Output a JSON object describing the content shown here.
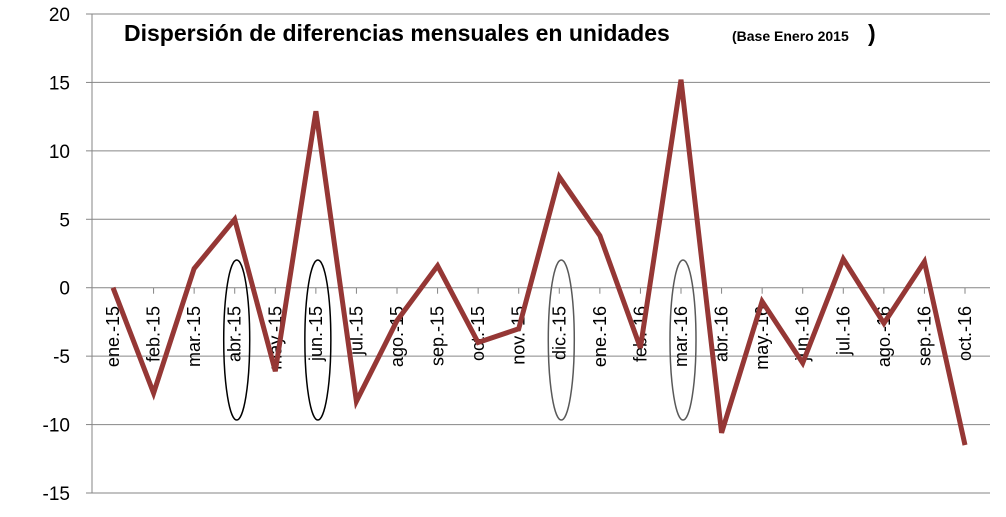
{
  "chart_data": {
    "type": "line",
    "title": "Dispersión de diferencias mensuales en unidades",
    "subtitle": "(Base Enero 2015",
    "subtitle_close": ")",
    "xlabel": "",
    "ylabel": "",
    "ylim": [
      -15,
      20
    ],
    "yticks": [
      20,
      15,
      10,
      5,
      0,
      -5,
      -10,
      -15
    ],
    "ytick_labels": [
      "20",
      "15",
      "10",
      "5",
      "0",
      "-5",
      "-10",
      "-15"
    ],
    "grid": true,
    "legend": "none",
    "x": [
      "ene.-15",
      "feb.-15",
      "mar.-15",
      "abr.-15",
      "may.-15",
      "jun.-15",
      "jul.-15",
      "ago.-15",
      "sep.-15",
      "oct.-15",
      "nov.-15",
      "dic.-15",
      "ene.-16",
      "feb.-16",
      "mar.-16",
      "abr.-16",
      "may.-16",
      "jun.-16",
      "jul.-16",
      "ago.-16",
      "sep.-16",
      "oct.-16"
    ],
    "series": [
      {
        "color": "#953735",
        "values": [
          0,
          -7.7,
          1.4,
          5.0,
          -6.1,
          12.9,
          -8.3,
          -2.4,
          1.6,
          -4.0,
          -3.0,
          8.1,
          3.8,
          -4.4,
          15.2,
          -10.6,
          -1.0,
          -5.5,
          2.1,
          -2.6,
          1.9,
          -11.5
        ]
      }
    ],
    "highlighted_categories": [
      {
        "label": "abr.-15",
        "color": "#000000"
      },
      {
        "label": "jun.-15",
        "color": "#000000"
      },
      {
        "label": "dic.-15",
        "color": "#595959"
      },
      {
        "label": "mar.-16",
        "color": "#595959"
      }
    ]
  }
}
